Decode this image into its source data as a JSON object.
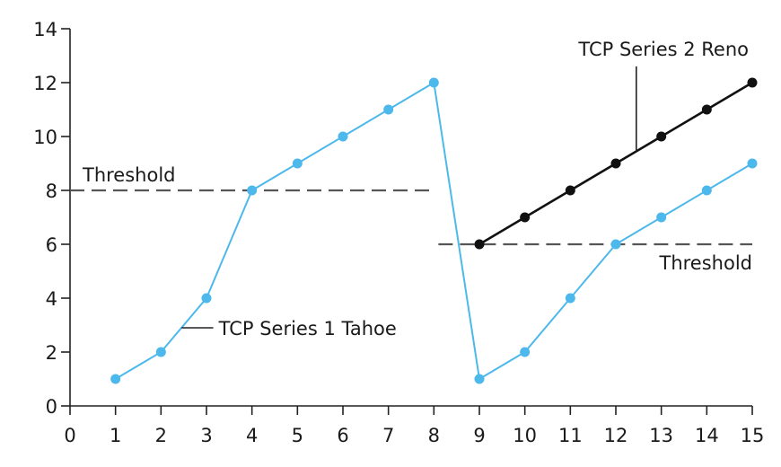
{
  "chart_data": {
    "type": "line",
    "title": "",
    "xlabel": "",
    "ylabel": "",
    "xlim": [
      0,
      15
    ],
    "ylim": [
      0,
      14
    ],
    "x_ticks": [
      0,
      1,
      2,
      3,
      4,
      5,
      6,
      7,
      8,
      9,
      10,
      11,
      12,
      13,
      14,
      15
    ],
    "y_ticks": [
      0,
      2,
      4,
      6,
      8,
      10,
      12,
      14
    ],
    "grid": false,
    "series": [
      {
        "name": "TCP Series 1 Tahoe",
        "color": "#4db8ec",
        "x": [
          1,
          2,
          3,
          4,
          5,
          6,
          7,
          8,
          9,
          10,
          11,
          12,
          13,
          14,
          15
        ],
        "y": [
          1,
          2,
          4,
          8,
          9,
          10,
          11,
          12,
          1,
          2,
          4,
          6,
          7,
          8,
          9
        ]
      },
      {
        "name": "TCP Series 2 Reno",
        "color": "#111111",
        "x": [
          9,
          10,
          11,
          12,
          13,
          14,
          15
        ],
        "y": [
          6,
          7,
          8,
          9,
          10,
          11,
          12
        ]
      }
    ],
    "thresholds": [
      {
        "label": "Threshold",
        "y": 8,
        "x_from": 0,
        "x_to": 8
      },
      {
        "label": "Threshold",
        "y": 6,
        "x_from": 8.1,
        "x_to": 15
      }
    ],
    "annotations": [
      {
        "text": "TCP Series 1 Tahoe",
        "series": 0
      },
      {
        "text": "TCP Series 2 Reno",
        "series": 1
      }
    ]
  }
}
